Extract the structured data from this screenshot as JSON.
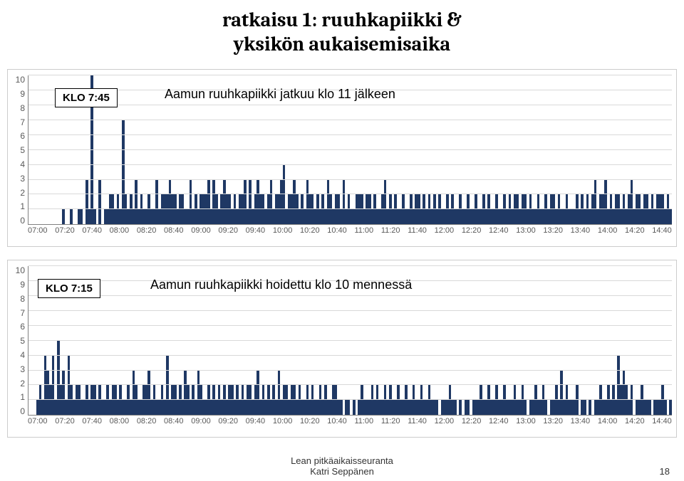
{
  "title_line1": "ratkaisu 1: ruuhkapiikki &",
  "title_line2": "yksikön aukaisemisaika",
  "chart1": {
    "label_box": "KLO 7:45",
    "annotation": "Aamun ruuhkapiikki jatkuu klo 11 jälkeen",
    "y_max": 10,
    "y_ticks": [
      "10",
      "9",
      "8",
      "7",
      "6",
      "5",
      "4",
      "3",
      "2",
      "1",
      "0"
    ],
    "x_ticks": [
      "07:00",
      "07:20",
      "07:40",
      "08:00",
      "08:20",
      "08:40",
      "09:00",
      "09:20",
      "09:40",
      "10:00",
      "10:20",
      "10:40",
      "11:00",
      "11:20",
      "11:40",
      "12:00",
      "12:20",
      "12:40",
      "13:00",
      "13:20",
      "13:40",
      "14:00",
      "14:20",
      "14:40"
    ],
    "bar_color": "#1f3864",
    "grid_color": "#d9d9d9",
    "axis_color": "#808080",
    "tick_font_color": "#595959",
    "tick_font_size": 12,
    "values": [
      0,
      0,
      0,
      0,
      0,
      0,
      0,
      0,
      0,
      0,
      0,
      0,
      0,
      1,
      0,
      0,
      1,
      0,
      0,
      1,
      1,
      0,
      3,
      1,
      10,
      1,
      0,
      3,
      0,
      1,
      1,
      2,
      2,
      1,
      2,
      1,
      7,
      2,
      1,
      2,
      1,
      3,
      1,
      2,
      1,
      1,
      2,
      1,
      1,
      3,
      1,
      2,
      2,
      2,
      3,
      2,
      2,
      1,
      2,
      2,
      1,
      1,
      3,
      1,
      2,
      1,
      2,
      2,
      2,
      3,
      1,
      3,
      2,
      1,
      2,
      3,
      2,
      2,
      1,
      2,
      1,
      2,
      2,
      3,
      1,
      3,
      1,
      2,
      3,
      2,
      2,
      1,
      2,
      3,
      1,
      2,
      2,
      3,
      4,
      1,
      2,
      2,
      3,
      2,
      1,
      2,
      1,
      3,
      2,
      2,
      1,
      2,
      1,
      2,
      1,
      3,
      2,
      1,
      2,
      2,
      1,
      3,
      1,
      2,
      1,
      1,
      2,
      2,
      2,
      1,
      2,
      2,
      1,
      2,
      1,
      1,
      2,
      3,
      1,
      2,
      1,
      2,
      1,
      1,
      2,
      1,
      1,
      2,
      1,
      2,
      2,
      1,
      2,
      1,
      2,
      1,
      2,
      1,
      2,
      1,
      1,
      2,
      1,
      2,
      1,
      1,
      2,
      1,
      1,
      2,
      1,
      1,
      2,
      1,
      1,
      2,
      1,
      2,
      1,
      1,
      2,
      1,
      1,
      2,
      1,
      2,
      1,
      2,
      2,
      1,
      2,
      2,
      1,
      2,
      1,
      1,
      2,
      1,
      1,
      2,
      1,
      2,
      2,
      1,
      2,
      1,
      1,
      2,
      1,
      1,
      1,
      2,
      1,
      2,
      1,
      2,
      1,
      2,
      3,
      1,
      2,
      2,
      3,
      1,
      2,
      1,
      2,
      2,
      1,
      2,
      1,
      2,
      3,
      1,
      2,
      2,
      1,
      2,
      2,
      1,
      2,
      1,
      2,
      2,
      2,
      1,
      2,
      1
    ]
  },
  "chart2": {
    "label_box": "KLO 7:15",
    "annotation": "Aamun ruuhkapiikki hoidettu klo 10 mennessä",
    "y_max": 10,
    "y_ticks": [
      "10",
      "9",
      "8",
      "7",
      "6",
      "5",
      "4",
      "3",
      "2",
      "1",
      "0"
    ],
    "x_ticks": [
      "07:00",
      "07:20",
      "07:40",
      "08:00",
      "08:20",
      "08:40",
      "09:00",
      "09:20",
      "09:40",
      "10:00",
      "10:20",
      "10:40",
      "11:00",
      "11:20",
      "11:40",
      "12:00",
      "12:20",
      "12:40",
      "13:00",
      "13:20",
      "13:40",
      "14:00",
      "14:20",
      "14:40"
    ],
    "bar_color": "#1f3864",
    "grid_color": "#d9d9d9",
    "axis_color": "#808080",
    "tick_font_color": "#595959",
    "tick_font_size": 12,
    "values": [
      0,
      0,
      0,
      1,
      2,
      1,
      4,
      3,
      2,
      4,
      1,
      5,
      2,
      3,
      1,
      4,
      2,
      1,
      2,
      2,
      1,
      1,
      2,
      1,
      2,
      2,
      1,
      2,
      1,
      1,
      2,
      1,
      2,
      2,
      1,
      2,
      1,
      1,
      2,
      1,
      3,
      2,
      1,
      1,
      2,
      2,
      3,
      1,
      2,
      1,
      1,
      2,
      1,
      4,
      1,
      2,
      2,
      1,
      2,
      1,
      3,
      2,
      1,
      2,
      1,
      3,
      2,
      1,
      1,
      2,
      1,
      2,
      1,
      2,
      1,
      2,
      1,
      2,
      2,
      1,
      2,
      1,
      2,
      1,
      2,
      2,
      1,
      2,
      3,
      1,
      2,
      1,
      2,
      1,
      2,
      1,
      3,
      1,
      2,
      2,
      1,
      2,
      2,
      1,
      2,
      1,
      1,
      2,
      1,
      2,
      1,
      1,
      2,
      1,
      2,
      1,
      1,
      2,
      2,
      1,
      1,
      0,
      1,
      1,
      0,
      1,
      0,
      1,
      2,
      1,
      1,
      1,
      2,
      1,
      2,
      1,
      1,
      2,
      1,
      2,
      1,
      1,
      2,
      1,
      1,
      2,
      1,
      1,
      2,
      1,
      1,
      2,
      1,
      1,
      2,
      1,
      1,
      1,
      0,
      1,
      1,
      1,
      2,
      1,
      1,
      0,
      1,
      0,
      1,
      1,
      0,
      1,
      1,
      1,
      2,
      1,
      1,
      2,
      1,
      1,
      2,
      1,
      1,
      2,
      1,
      1,
      1,
      2,
      1,
      1,
      2,
      1,
      0,
      1,
      1,
      2,
      1,
      1,
      2,
      1,
      0,
      1,
      1,
      2,
      1,
      3,
      1,
      2,
      1,
      1,
      1,
      2,
      0,
      1,
      1,
      0,
      1,
      0,
      1,
      1,
      2,
      1,
      1,
      2,
      1,
      2,
      1,
      4,
      2,
      3,
      2,
      1,
      2,
      0,
      1,
      1,
      2,
      1,
      1,
      1,
      0,
      1,
      1,
      1,
      2,
      1,
      0,
      1
    ]
  },
  "footer": {
    "line1": "Lean pitkäaikaisseuranta",
    "line2": "Katri Seppänen",
    "page_num": "18"
  }
}
